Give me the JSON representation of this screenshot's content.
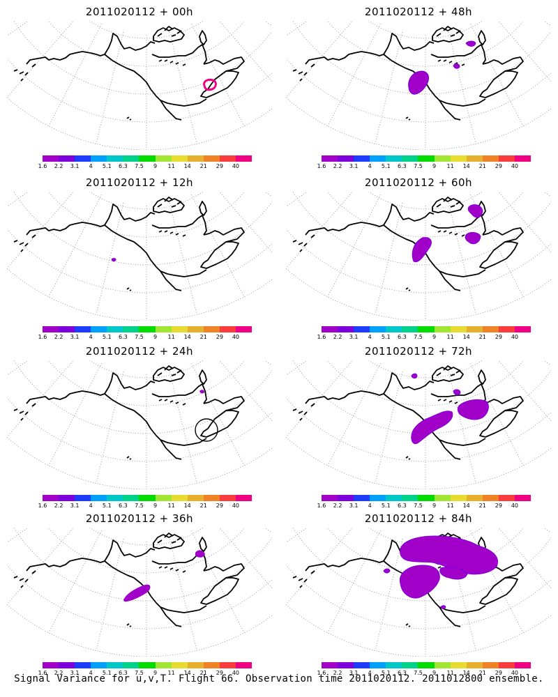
{
  "panels": [
    {
      "id": "p00",
      "title": "2011020112 + 00h"
    },
    {
      "id": "p48",
      "title": "2011020112 + 48h"
    },
    {
      "id": "p12",
      "title": "2011020112 + 12h"
    },
    {
      "id": "p60",
      "title": "2011020112 + 60h"
    },
    {
      "id": "p24",
      "title": "2011020112 + 24h"
    },
    {
      "id": "p72",
      "title": "2011020112 + 72h"
    },
    {
      "id": "p36",
      "title": "2011020112 + 36h"
    },
    {
      "id": "p84",
      "title": "2011020112 + 84h"
    }
  ],
  "colorbar": {
    "labels": [
      "1.6",
      "2.2",
      "3.1",
      "4",
      "5.1",
      "6.3",
      "7.5",
      "9",
      "11",
      "14",
      "21",
      "29",
      "40"
    ],
    "colors": [
      "#a000c8",
      "#7d00dc",
      "#1e3cff",
      "#00a0ff",
      "#00c8c8",
      "#00d28c",
      "#00dc00",
      "#a0e632",
      "#e6dc32",
      "#e6af2d",
      "#f08228",
      "#fa3c3c",
      "#f00082"
    ]
  },
  "footer": {
    "caption": "Signal Variance for u,v,T. Flight 66. Observation time 2011020112. 2011012800 ensemble."
  }
}
